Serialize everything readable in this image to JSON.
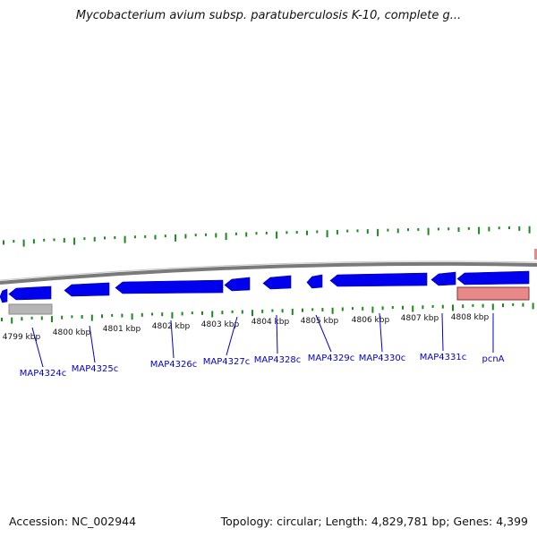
{
  "title": "Mycobacterium avium subsp. paratuberculosis K-10, complete g...",
  "footer": {
    "accession": "Accession: NC_002944",
    "summary": "Topology: circular; Length: 4,829,781 bp; Genes: 4,399"
  },
  "colors": {
    "backbone": "#7a7a7a",
    "gene_forward": "#0000ee",
    "gene_reverse": "#0000ee",
    "pseudo_gene": "#b5b5b5",
    "highlight_gene": "#e88888",
    "gc_tick": "#1a8a1a",
    "label": "#0000cc"
  },
  "scale": {
    "unit": "kbp",
    "ticks": [
      "4799 kbp",
      "4800 kbp",
      "4801 kbp",
      "4802 kbp",
      "4803 kbp",
      "4804 kbp",
      "4805 kbp",
      "4806 kbp",
      "4807 kbp",
      "4808 kbp"
    ]
  },
  "genes": [
    {
      "name": "MAP4324c",
      "strand": "-"
    },
    {
      "name": "MAP4325c",
      "strand": "-"
    },
    {
      "name": "MAP4326c",
      "strand": "-"
    },
    {
      "name": "MAP4327c",
      "strand": "-"
    },
    {
      "name": "MAP4328c",
      "strand": "-"
    },
    {
      "name": "MAP4329c",
      "strand": "-"
    },
    {
      "name": "MAP4330c",
      "strand": "-"
    },
    {
      "name": "MAP4331c",
      "strand": "-"
    },
    {
      "name": "pcnA",
      "strand": "-"
    }
  ]
}
